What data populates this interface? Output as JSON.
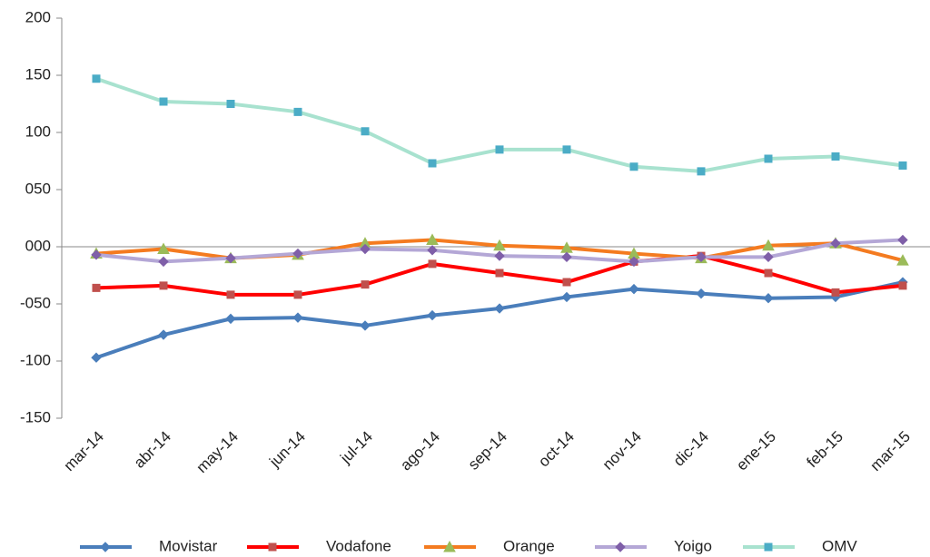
{
  "chart_data": {
    "type": "line",
    "categories": [
      "mar-14",
      "abr-14",
      "may-14",
      "jun-14",
      "jul-14",
      "ago-14",
      "sep-14",
      "oct-14",
      "nov-14",
      "dic-14",
      "ene-15",
      "feb-15",
      "mar-15"
    ],
    "ylim": [
      -150,
      200
    ],
    "yticks": [
      -150,
      -100,
      {
        "value": -50,
        "label": "-050"
      },
      {
        "value": 0,
        "label": "000"
      },
      {
        "value": 50,
        "label": "050"
      },
      100,
      150,
      200
    ],
    "legend": "bottom",
    "series": [
      {
        "name": "Movistar",
        "color": "#4a7ebb",
        "marker": "diamond",
        "marker_color": "#4a7ebb",
        "values": [
          -97,
          -77,
          -63,
          -62,
          -69,
          -60,
          -54,
          -44,
          -37,
          -41,
          -45,
          -44,
          -31
        ]
      },
      {
        "name": "Vodafone",
        "color": "#ff0000",
        "marker": "square",
        "marker_color": "#c0504d",
        "values": [
          -36,
          -34,
          -42,
          -42,
          -33,
          -15,
          -23,
          -31,
          -13,
          -8,
          -23,
          -40,
          -34
        ]
      },
      {
        "name": "Orange",
        "color": "#f47b20",
        "marker": "triangle",
        "marker_color": "#9bbb59",
        "values": [
          -6,
          -2,
          -10,
          -7,
          3,
          6,
          1,
          -1,
          -6,
          -10,
          1,
          3,
          -12
        ]
      },
      {
        "name": "Yoigo",
        "color": "#b4a7d6",
        "marker": "diamond",
        "marker_color": "#7f5fa8",
        "values": [
          -7,
          -13,
          -10,
          -6,
          -2,
          -3,
          -8,
          -9,
          -13,
          -9,
          -9,
          3,
          6
        ]
      },
      {
        "name": "OMV",
        "color": "#a8e2cf",
        "marker": "square",
        "marker_color": "#4bacc6",
        "values": [
          147,
          127,
          125,
          118,
          101,
          73,
          85,
          85,
          70,
          66,
          77,
          79,
          71
        ]
      }
    ]
  }
}
